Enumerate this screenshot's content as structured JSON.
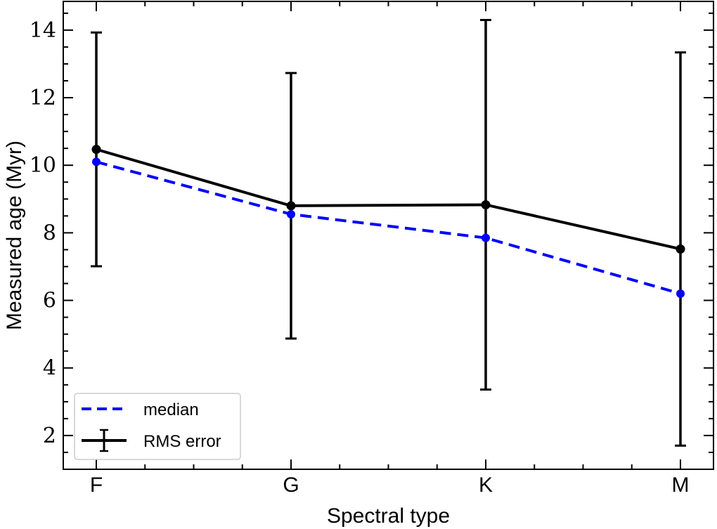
{
  "chart_data": {
    "type": "line",
    "xlabel": "Spectral type",
    "ylabel": "Measured age (Myr)",
    "categories": [
      "F",
      "G",
      "K",
      "M"
    ],
    "ylim": [
      1.0,
      14.85
    ],
    "yticks": [
      2,
      4,
      6,
      8,
      10,
      12,
      14
    ],
    "series": [
      {
        "name": "median",
        "style": "dashed",
        "color": "#0000ff",
        "values": [
          10.1,
          8.55,
          7.85,
          6.2
        ]
      },
      {
        "name": "RMS error",
        "style": "solid",
        "color": "#000000",
        "values": [
          10.47,
          8.8,
          8.83,
          7.52
        ],
        "errors": [
          3.46,
          3.93,
          5.47,
          5.82
        ]
      }
    ],
    "legend": {
      "position": "lower-left",
      "entries": [
        "median",
        "RMS error"
      ]
    }
  }
}
